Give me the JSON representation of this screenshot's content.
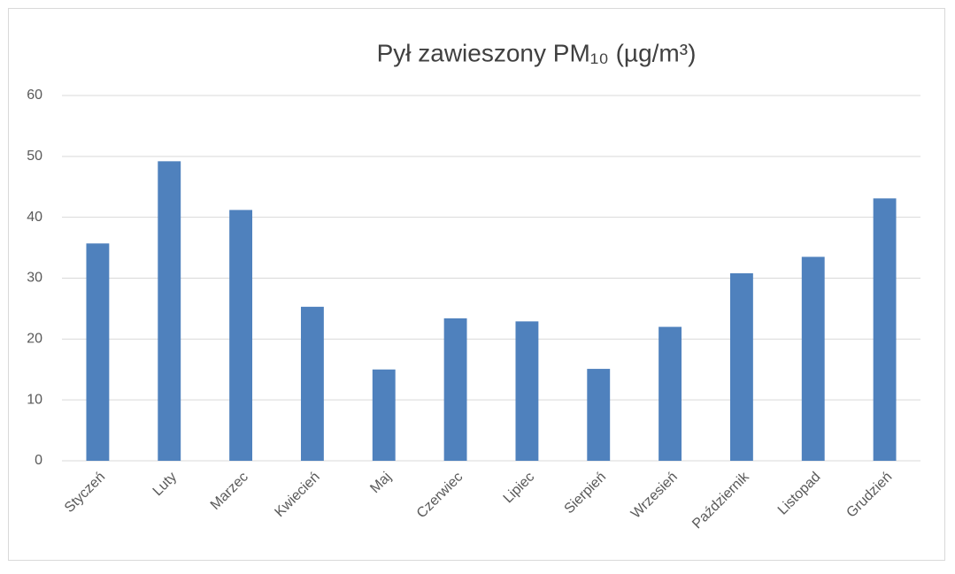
{
  "chart_data": {
    "type": "bar",
    "title": "Pył zawieszony PM₁₀ (µg/m³)",
    "categories": [
      "Styczeń",
      "Luty",
      "Marzec",
      "Kwiecień",
      "Maj",
      "Czerwiec",
      "Lipiec",
      "Sierpień",
      "Wrzesień",
      "Październik",
      "Listopad",
      "Grudzień"
    ],
    "values": [
      35.7,
      49.2,
      41.2,
      25.3,
      15.0,
      23.4,
      22.9,
      15.1,
      22.0,
      30.8,
      33.5,
      43.1
    ],
    "color": "#4f81bd",
    "ylim": [
      0,
      60
    ],
    "yticks": [
      0,
      10,
      20,
      30,
      40,
      50,
      60
    ],
    "grid": true
  }
}
